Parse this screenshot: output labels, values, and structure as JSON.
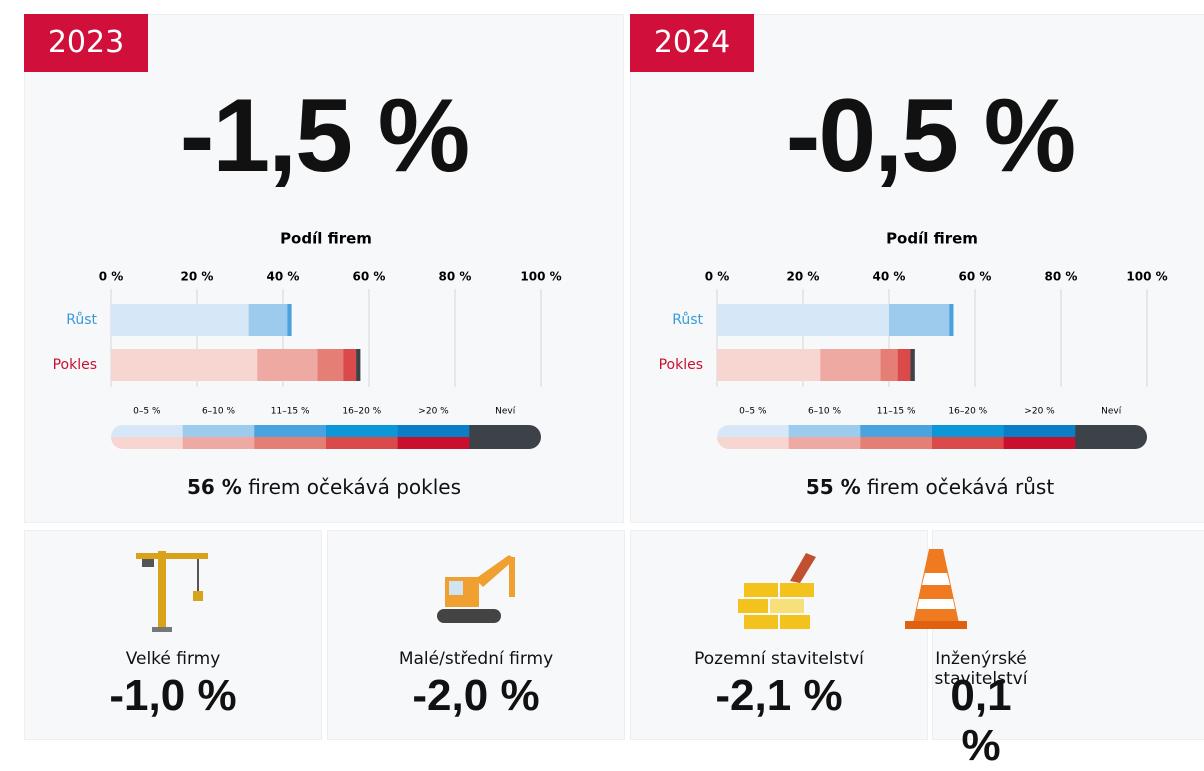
{
  "panels": [
    {
      "year": "2023",
      "value": "-1,5 %",
      "summary_bold": "56 %",
      "summary": "firem očekává pokles"
    },
    {
      "year": "2024",
      "value": "-0,5 %",
      "summary_bold": "55 %",
      "summary": "firem očekává růst"
    }
  ],
  "cards": [
    {
      "label": "Velké firmy",
      "value": "-1,0 %"
    },
    {
      "label": "Malé/střední firmy",
      "value": "-2,0 %"
    },
    {
      "label": "Pozemní stavitelství",
      "value": "-2,1 %"
    },
    {
      "label": "Inženýrské stavitelství",
      "value": "0,1 %"
    }
  ],
  "chart_data": [
    {
      "type": "stacked_bar",
      "title": "Podíl firem",
      "categories": [
        "Růst",
        "Pokles"
      ],
      "category_colors": [
        "#3a9ad9",
        "#c8102e"
      ],
      "xlim": [
        0,
        100
      ],
      "xticks": [
        {
          "value": 0,
          "label": "0 %"
        },
        {
          "value": 20,
          "label": "20 %"
        },
        {
          "value": 40,
          "label": "40 %"
        },
        {
          "value": 60,
          "label": "60 %"
        },
        {
          "value": 80,
          "label": "80 %"
        },
        {
          "value": 100,
          "label": "100 %"
        }
      ],
      "grid": true,
      "series": [
        {
          "name": "0–5 %",
          "colors": [
            "#d6e7f7",
            "#f7d6d2"
          ],
          "values": [
            32,
            34
          ]
        },
        {
          "name": "6–10 %",
          "colors": [
            "#9ccbee",
            "#eeaaa2"
          ],
          "values": [
            9,
            14
          ]
        },
        {
          "name": "11–15 %",
          "colors": [
            "#4aa3df",
            "#e57f76"
          ],
          "values": [
            1,
            6
          ]
        },
        {
          "name": "16–20 %",
          "colors": [
            "#0d97d8",
            "#db4a4a"
          ],
          "values": [
            0,
            3
          ]
        },
        {
          "name": ">20 %",
          "colors": [
            "#0a7fc8",
            "#c8102e"
          ],
          "values": [
            0,
            0
          ]
        },
        {
          "name": "Neví",
          "colors": [
            "#3d4148",
            "#3d4148"
          ],
          "values": [
            0,
            1
          ]
        }
      ]
    },
    {
      "type": "stacked_bar",
      "title": "Podíl firem",
      "categories": [
        "Růst",
        "Pokles"
      ],
      "category_colors": [
        "#3a9ad9",
        "#c8102e"
      ],
      "xlim": [
        0,
        100
      ],
      "xticks": [
        {
          "value": 0,
          "label": "0 %"
        },
        {
          "value": 20,
          "label": "20 %"
        },
        {
          "value": 40,
          "label": "40 %"
        },
        {
          "value": 60,
          "label": "60 %"
        },
        {
          "value": 80,
          "label": "80 %"
        },
        {
          "value": 100,
          "label": "100 %"
        }
      ],
      "grid": true,
      "series": [
        {
          "name": "0–5 %",
          "colors": [
            "#d6e7f7",
            "#f7d6d2"
          ],
          "values": [
            40,
            24
          ]
        },
        {
          "name": "6–10 %",
          "colors": [
            "#9ccbee",
            "#eeaaa2"
          ],
          "values": [
            14,
            14
          ]
        },
        {
          "name": "11–15 %",
          "colors": [
            "#4aa3df",
            "#e57f76"
          ],
          "values": [
            1,
            4
          ]
        },
        {
          "name": "16–20 %",
          "colors": [
            "#0d97d8",
            "#db4a4a"
          ],
          "values": [
            0,
            3
          ]
        },
        {
          "name": ">20 %",
          "colors": [
            "#0a7fc8",
            "#c8102e"
          ],
          "values": [
            0,
            0
          ]
        },
        {
          "name": "Neví",
          "colors": [
            "#3d4148",
            "#3d4148"
          ],
          "values": [
            0,
            1
          ]
        }
      ]
    }
  ]
}
